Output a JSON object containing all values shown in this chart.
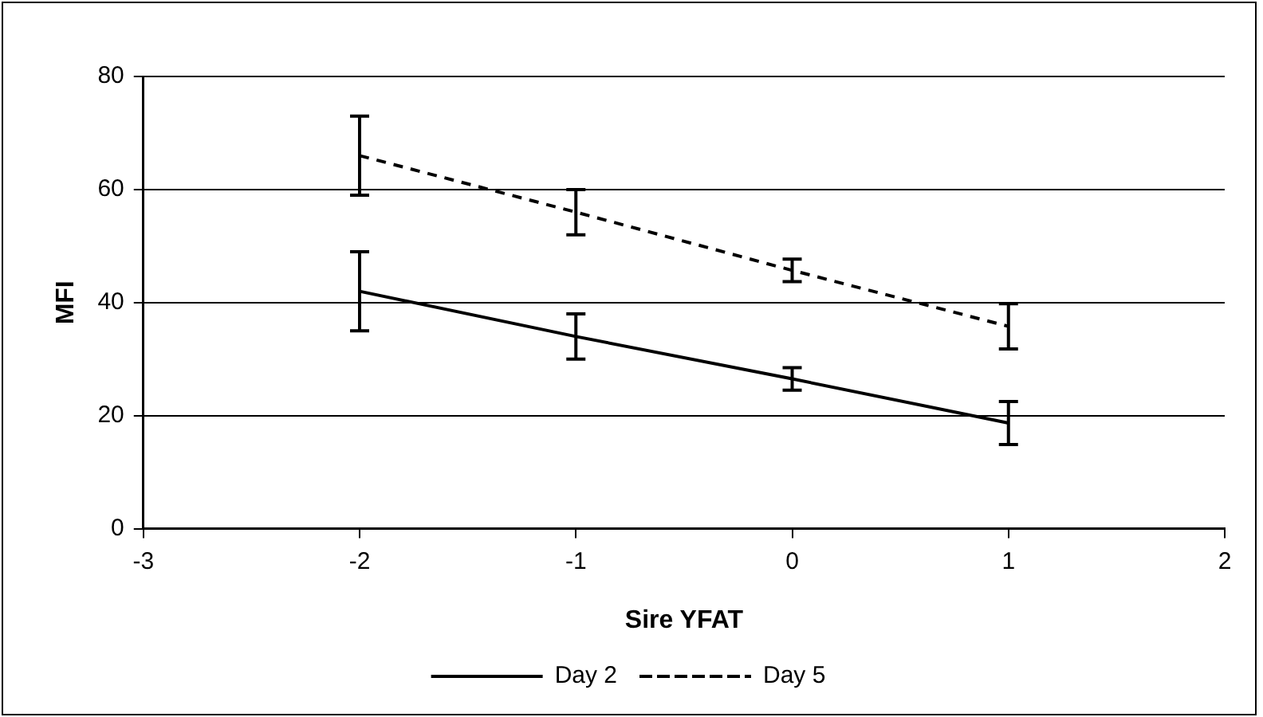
{
  "chart_data": {
    "type": "line",
    "xlabel": "Sire YFAT",
    "ylabel": "MFI",
    "x": [
      -2,
      -1,
      0,
      1
    ],
    "xlim": [
      -3,
      2
    ],
    "xticks": [
      -3,
      -2,
      -1,
      0,
      1,
      2
    ],
    "ylim": [
      0,
      80
    ],
    "yticks": [
      0,
      20,
      40,
      60,
      80
    ],
    "grid": "y",
    "legend": "bottom",
    "marker": "none",
    "series": [
      {
        "name": "Day 2",
        "color": "#000000",
        "line_style": "solid",
        "values": [
          42,
          34,
          26.5,
          18.7
        ],
        "errors": [
          7,
          4,
          2,
          3.8
        ]
      },
      {
        "name": "Day 5",
        "color": "#000000",
        "line_style": "dashed",
        "values": [
          66,
          56,
          45.7,
          35.8
        ],
        "errors": [
          7,
          4,
          2,
          4
        ]
      }
    ]
  }
}
